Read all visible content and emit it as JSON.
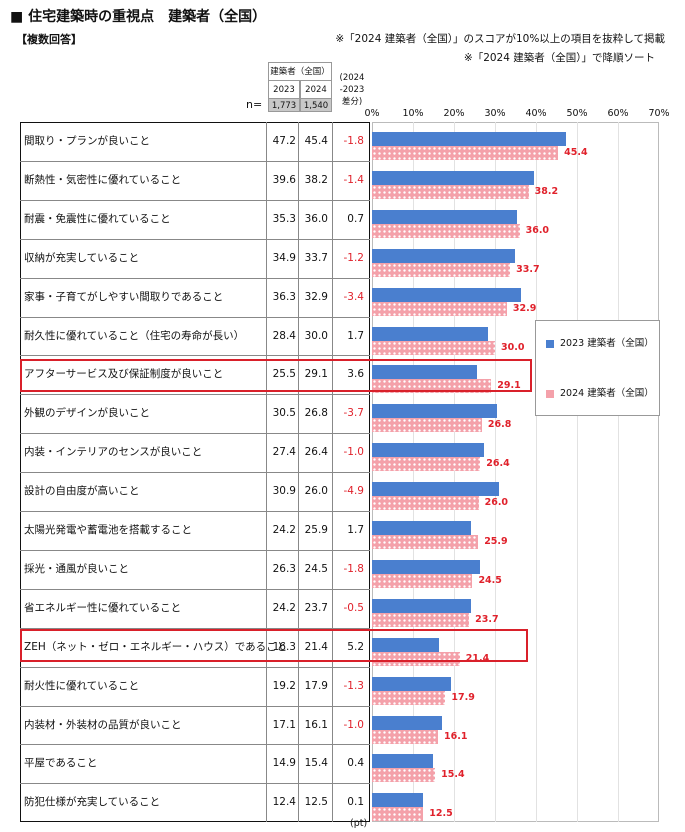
{
  "title": "■ 住宅建築時の重視点　建築者（全国）",
  "note_multi": "【複数回答】",
  "notes": [
    "※「2024 建築者（全国）」のスコアが10%以上の項目を抜粋して掲載",
    "※「2024 建築者（全国）」で降順ソート"
  ],
  "table_header": {
    "group": "建築者（全国）",
    "year_2023": "2023",
    "year_2024": "2024",
    "diff": "(2024\n-2023\n差分)",
    "n_label": "n=",
    "n_2023": "1,773",
    "n_2024": "1,540"
  },
  "colors": {
    "bar_2023": "#4a7fcf",
    "bar_2024": "#f4a1aa",
    "negative": "#e0212b",
    "highlight": "#d9202a"
  },
  "chart_data": {
    "type": "bar",
    "orientation": "horizontal",
    "xlim": [
      0,
      70
    ],
    "xticks": [
      "0%",
      "10%",
      "20%",
      "30%",
      "40%",
      "50%",
      "60%",
      "70%"
    ],
    "unit_label": "(pt)",
    "legend_position": "right",
    "categories": [
      "間取り・プランが良いこと",
      "断熱性・気密性に優れていること",
      "耐震・免震性に優れていること",
      "収納が充実していること",
      "家事・子育てがしやすい間取りであること",
      "耐久性に優れていること（住宅の寿命が長い）",
      "アフターサービス及び保証制度が良いこと",
      "外観のデザインが良いこと",
      "内装・インテリアのセンスが良いこと",
      "設計の自由度が高いこと",
      "太陽光発電や蓄電池を搭載すること",
      "採光・通風が良いこと",
      "省エネルギー性に優れていること",
      "ZEH（ネット・ゼロ・エネルギー・ハウス）であること",
      "耐火性に優れていること",
      "内装材・外装材の品質が良いこと",
      "平屋であること",
      "防犯仕様が充実していること"
    ],
    "series": [
      {
        "name": "2023 建築者（全国）",
        "values": [
          47.2,
          39.6,
          35.3,
          34.9,
          36.3,
          28.4,
          25.5,
          30.5,
          27.4,
          30.9,
          24.2,
          26.3,
          24.2,
          16.3,
          19.2,
          17.1,
          14.9,
          12.4
        ]
      },
      {
        "name": "2024 建築者（全国）",
        "values": [
          45.4,
          38.2,
          36.0,
          33.7,
          32.9,
          30.0,
          29.1,
          26.8,
          26.4,
          26.0,
          25.9,
          24.5,
          23.7,
          21.4,
          17.9,
          16.1,
          15.4,
          12.5
        ]
      }
    ],
    "value_text_2023": [
      "47.2",
      "39.6",
      "35.3",
      "34.9",
      "36.3",
      "28.4",
      "25.5",
      "30.5",
      "27.4",
      "30.9",
      "24.2",
      "26.3",
      "24.2",
      "16.3",
      "19.2",
      "17.1",
      "14.9",
      "12.4"
    ],
    "value_text_2024": [
      "45.4",
      "38.2",
      "36.0",
      "33.7",
      "32.9",
      "30.0",
      "29.1",
      "26.8",
      "26.4",
      "26.0",
      "25.9",
      "24.5",
      "23.7",
      "21.4",
      "17.9",
      "16.1",
      "15.4",
      "12.5"
    ],
    "diff_text": [
      "-1.8",
      "-1.4",
      "0.7",
      "-1.2",
      "-3.4",
      "1.7",
      "3.6",
      "-3.7",
      "-1.0",
      "-4.9",
      "1.7",
      "-1.8",
      "-0.5",
      "5.2",
      "-1.3",
      "-1.0",
      "0.4",
      "0.1"
    ],
    "highlighted_rows": [
      6,
      13
    ]
  }
}
